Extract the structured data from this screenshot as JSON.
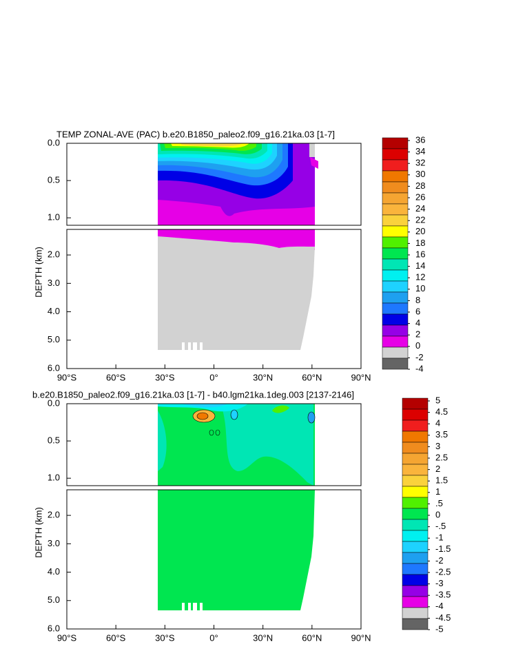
{
  "chart_data": [
    {
      "type": "contour",
      "title": "TEMP ZONAL-AVE (PAC) b.e20.B1850_paleo2.f09_g16.21ka.03 [1-7]",
      "ylabel": "DEPTH (km)",
      "xlim": [
        -90,
        90
      ],
      "ylim": [
        0,
        6
      ],
      "y_break": 1.1,
      "xticks": [
        {
          "value": -90,
          "label": "90°S"
        },
        {
          "value": -60,
          "label": "60°S"
        },
        {
          "value": -30,
          "label": "30°S"
        },
        {
          "value": 0,
          "label": "0°"
        },
        {
          "value": 30,
          "label": "30°N"
        },
        {
          "value": 60,
          "label": "60°N"
        },
        {
          "value": 90,
          "label": "90°N"
        }
      ],
      "yticks": [
        {
          "value": 0,
          "label": "0.0"
        },
        0.5,
        {
          "value": 1,
          "label": "1.0"
        },
        {
          "value": 2,
          "label": "2.0"
        },
        {
          "value": 3,
          "label": "3.0"
        },
        {
          "value": 4,
          "label": "4.0"
        },
        {
          "value": 5,
          "label": "5.0"
        },
        {
          "value": 6,
          "label": "6.0"
        }
      ],
      "colorbar_labels": [
        36,
        34,
        32,
        30,
        28,
        26,
        24,
        22,
        20,
        18,
        16,
        14,
        12,
        10,
        8,
        6,
        4,
        2,
        0,
        -2,
        -4
      ],
      "colors": [
        "#b40000",
        "#dc0000",
        "#f01e1e",
        "#f07800",
        "#f08c1e",
        "#f5a532",
        "#fab43c",
        "#fad23c",
        "#ffff00",
        "#50f000",
        "#00e650",
        "#00e6b4",
        "#00f0f0",
        "#1ed2ff",
        "#1ea0f0",
        "#1e78ff",
        "#0000e6",
        "#9600e6",
        "#e600e6",
        "#d2d2d2",
        "#646464"
      ]
    },
    {
      "type": "contour",
      "title": "b.e20.B1850_paleo2.f09_g16.21ka.03 [1-7] - b40.lgm21ka.1deg.003 [2137-2146]",
      "ylabel": "DEPTH (km)",
      "xlim": [
        -90,
        90
      ],
      "ylim": [
        0,
        6
      ],
      "y_break": 1.1,
      "xticks": [
        {
          "value": -90,
          "label": "90°S"
        },
        {
          "value": -60,
          "label": "60°S"
        },
        {
          "value": -30,
          "label": "30°S"
        },
        {
          "value": 0,
          "label": "0°"
        },
        {
          "value": 30,
          "label": "30°N"
        },
        {
          "value": 60,
          "label": "60°N"
        },
        {
          "value": 90,
          "label": "90°N"
        }
      ],
      "yticks": [
        {
          "value": 0,
          "label": "0.0"
        },
        0.5,
        {
          "value": 1,
          "label": "1.0"
        },
        {
          "value": 2,
          "label": "2.0"
        },
        {
          "value": 3,
          "label": "3.0"
        },
        {
          "value": 4,
          "label": "4.0"
        },
        {
          "value": 5,
          "label": "5.0"
        },
        {
          "value": 6,
          "label": "6.0"
        }
      ],
      "colorbar_labels": [
        5,
        4.5,
        4,
        3.5,
        3,
        2.5,
        2,
        1.5,
        1,
        {
          "value": 0.5,
          "label": ".5"
        },
        0,
        {
          "value": -0.5,
          "label": "-.5"
        },
        -1,
        -1.5,
        -2,
        -2.5,
        -3,
        -3.5,
        -4,
        -4.5,
        -5
      ],
      "colors": [
        "#b40000",
        "#dc0000",
        "#f01e1e",
        "#f07800",
        "#f08c1e",
        "#f5a532",
        "#fab43c",
        "#fad23c",
        "#ffff00",
        "#50f000",
        "#00e650",
        "#00e6b4",
        "#00f0f0",
        "#1ed2ff",
        "#1ea0f0",
        "#1e78ff",
        "#0000e6",
        "#9600e6",
        "#e600e6",
        "#d2d2d2",
        "#646464"
      ]
    }
  ]
}
